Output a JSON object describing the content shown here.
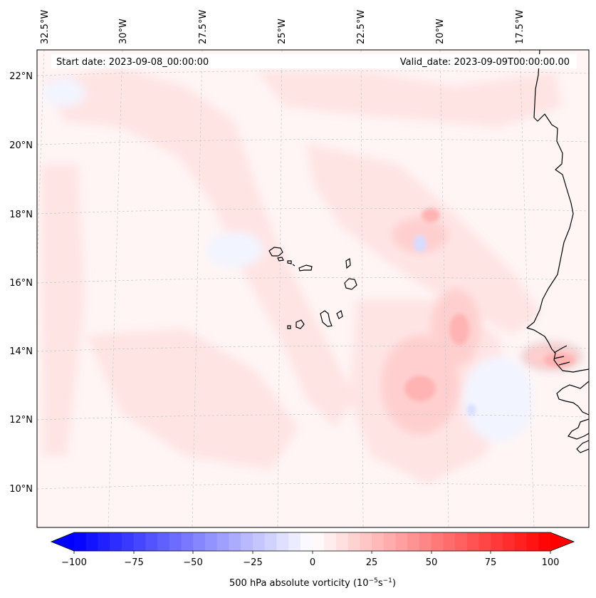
{
  "map": {
    "start_date": "Start date: 2023-09-08_00:00:00",
    "valid_date": "Valid_date: 2023-09-09T00:00:00.00",
    "lon_labels": [
      "32.5°W",
      "30°W",
      "27.5°W",
      "25°W",
      "22.5°W",
      "20°W",
      "17.5°W"
    ],
    "lat_labels": [
      "22°N",
      "20°N",
      "18°N",
      "16°N",
      "14°N",
      "12°N",
      "10°N"
    ],
    "field_colors": {
      "background": "#fff5f5",
      "weak_pos": "#ffe4e4",
      "mod_pos": "#ffcfcf",
      "strong_pos": "#ffb3b3",
      "weak_neg": "#f2f4ff",
      "mod_neg": "#d8dcff",
      "coast": "#000000",
      "grid": "#c8c8c8"
    }
  },
  "colorbar": {
    "ticks": [
      "−100",
      "−75",
      "−50",
      "−25",
      "0",
      "25",
      "50",
      "75",
      "100"
    ],
    "label_main": "500 hPa absolute vorticity (10",
    "label_exp1": "−5",
    "label_mid": "s",
    "label_exp2": "−1",
    "label_end": ")",
    "colors": {
      "min": "#0000ff",
      "mid": "#ffffff",
      "max": "#ff0000"
    }
  }
}
